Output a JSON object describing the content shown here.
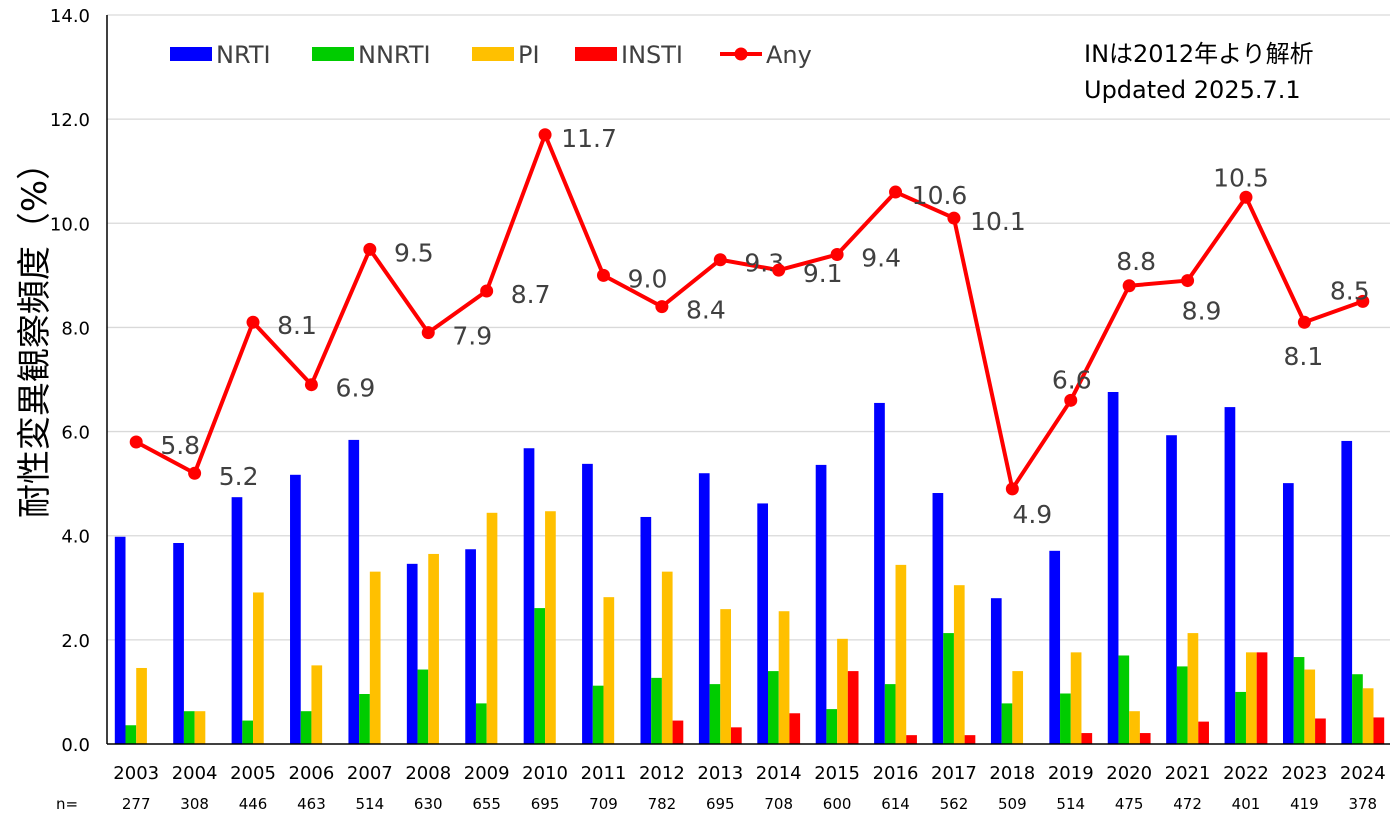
{
  "chart_data": {
    "type": "bar",
    "ylabel": "耐性変異観察頻度（%）",
    "ylim": [
      0,
      14
    ],
    "yticks": [
      "0.0",
      "2.0",
      "4.0",
      "6.0",
      "8.0",
      "10.0",
      "12.0",
      "14.0"
    ],
    "grid": true,
    "legend_position": "top",
    "categories": [
      "2003",
      "2004",
      "2005",
      "2006",
      "2007",
      "2008",
      "2009",
      "2010",
      "2011",
      "2012",
      "2013",
      "2014",
      "2015",
      "2016",
      "2017",
      "2018",
      "2019",
      "2020",
      "2021",
      "2022",
      "2023",
      "2024"
    ],
    "n_label": "n=",
    "n_values": [
      "277",
      "308",
      "446",
      "463",
      "514",
      "630",
      "655",
      "695",
      "709",
      "782",
      "695",
      "708",
      "600",
      "614",
      "562",
      "509",
      "514",
      "475",
      "472",
      "401",
      "419",
      "378"
    ],
    "series": [
      {
        "name": "NRTI",
        "type": "bar",
        "color": "#0000FF",
        "values": [
          3.98,
          3.86,
          4.74,
          5.17,
          5.84,
          3.46,
          3.74,
          5.68,
          5.38,
          4.36,
          5.2,
          4.62,
          5.36,
          6.55,
          4.82,
          2.8,
          3.71,
          6.76,
          5.93,
          6.47,
          5.01,
          5.82
        ]
      },
      {
        "name": "NNRTI",
        "type": "bar",
        "color": "#00CC00",
        "values": [
          0.36,
          0.63,
          0.45,
          0.63,
          0.96,
          1.43,
          0.78,
          2.61,
          1.12,
          1.27,
          1.15,
          1.4,
          0.67,
          1.15,
          2.13,
          0.78,
          0.97,
          1.7,
          1.49,
          1.0,
          1.67,
          1.34
        ]
      },
      {
        "name": "PI",
        "type": "bar",
        "color": "#FFC000",
        "values": [
          1.46,
          0.63,
          2.91,
          1.51,
          3.31,
          3.65,
          4.44,
          4.47,
          2.82,
          3.31,
          2.59,
          2.55,
          2.02,
          3.44,
          3.05,
          1.4,
          1.76,
          0.63,
          2.13,
          1.76,
          1.43,
          1.07
        ]
      },
      {
        "name": "INSTI",
        "type": "bar",
        "color": "#FF0000",
        "values": [
          0,
          0,
          0,
          0,
          0,
          0,
          0,
          0,
          0,
          0.45,
          0.32,
          0.59,
          1.4,
          0.17,
          0.17,
          0,
          0.21,
          0.21,
          0.43,
          1.76,
          0.49,
          0.51
        ]
      },
      {
        "name": "Any",
        "type": "line",
        "color": "#FF0000",
        "values": [
          5.8,
          5.2,
          8.1,
          6.9,
          9.5,
          7.9,
          8.7,
          11.7,
          9.0,
          8.4,
          9.3,
          9.1,
          9.4,
          10.6,
          10.1,
          4.9,
          6.6,
          8.8,
          8.9,
          10.5,
          8.1,
          8.5
        ],
        "data_labels": [
          "5.8",
          "5.2",
          "8.1",
          "6.9",
          "9.5",
          "7.9",
          "8.7",
          "11.7",
          "9.0",
          "8.4",
          "9.3",
          "9.1",
          "9.4",
          "10.6",
          "10.1",
          "4.9",
          "6.6",
          "8.8",
          "8.9",
          "10.5",
          "8.1",
          "8.5"
        ]
      }
    ],
    "annotations": [
      "INは2012年より解析",
      "Updated 2025.7.1"
    ]
  }
}
